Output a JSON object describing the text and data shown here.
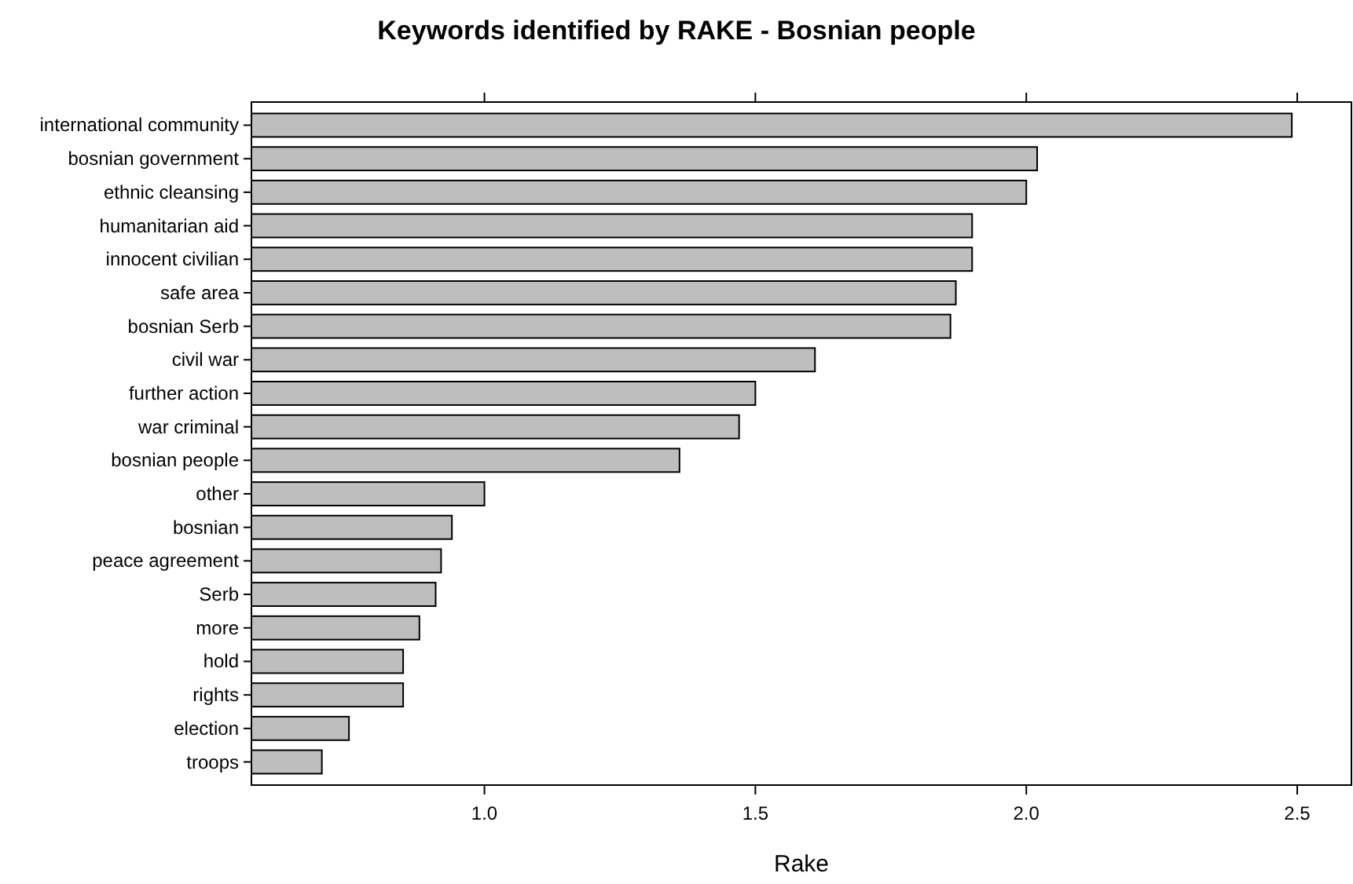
{
  "chart_data": {
    "type": "bar",
    "orientation": "horizontal",
    "title": "Keywords identified by RAKE - Bosnian people",
    "xlabel": "Rake",
    "categories": [
      "international community",
      "bosnian government",
      "ethnic cleansing",
      "humanitarian aid",
      "innocent civilian",
      "safe area",
      "bosnian Serb",
      "civil war",
      "further action",
      "war criminal",
      "bosnian people",
      "other",
      "bosnian",
      "peace agreement",
      "Serb",
      "more",
      "hold",
      "rights",
      "election",
      "troops"
    ],
    "values": [
      2.49,
      2.02,
      2.0,
      1.9,
      1.9,
      1.87,
      1.86,
      1.61,
      1.5,
      1.47,
      1.36,
      1.0,
      0.94,
      0.92,
      0.91,
      0.88,
      0.85,
      0.85,
      0.75,
      0.7
    ],
    "color": "#bebebe",
    "xlim": [
      0.57,
      2.6
    ],
    "xticks": [
      {
        "value": 1,
        "label": "1.0"
      },
      {
        "value": 1.5,
        "label": "1.5"
      },
      {
        "value": 2,
        "label": "2.0"
      },
      {
        "value": 2.5,
        "label": "2.5"
      }
    ]
  }
}
